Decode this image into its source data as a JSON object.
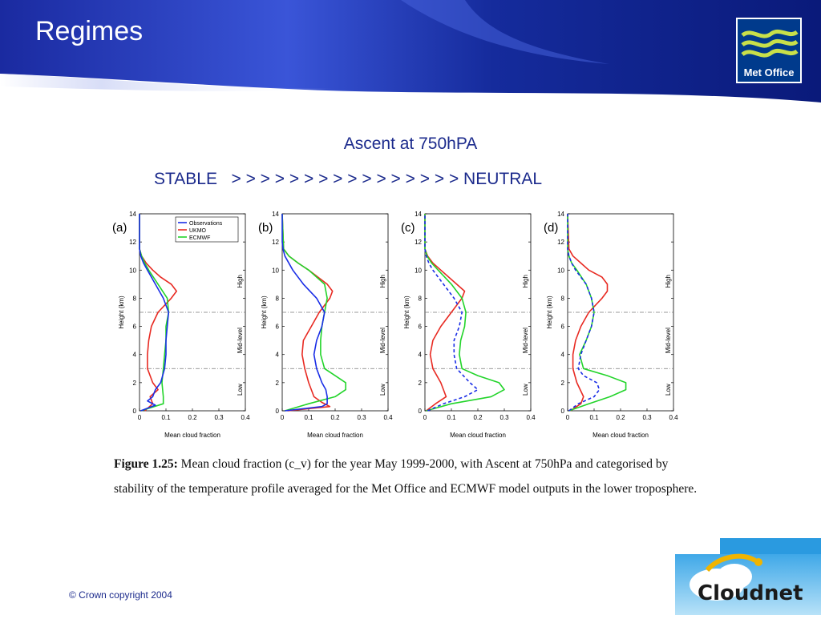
{
  "slide": {
    "title": "Regimes",
    "subtitle": "Ascent at 750hPA",
    "stability_label": "STABLE   > > > > > > > > > > > > > > > > NEUTRAL",
    "logo_text": "Met Office",
    "caption_label": "Figure 1.25:",
    "caption_text": " Mean cloud fraction (c_v) for the year May 1999-2000, with Ascent at 750hPa and categorised by stability of the temperature profile averaged for the Met Office  and ECMWF  model outputs in the lower troposphere.",
    "copyright": "© Crown copyright 2004",
    "footer_logo": "Cloudnet",
    "colors": {
      "header_blue": "#0f1f8c",
      "text_blue": "#1b2a8c",
      "observations": "#1a2ee6",
      "ukmo": "#e82a22",
      "ecmwf": "#22d42a"
    }
  },
  "chart_data": [
    {
      "type": "line",
      "panel_label": "(a)",
      "xlabel": "Mean cloud fraction",
      "ylabel": "Height (km)",
      "xlim": [
        0,
        0.4
      ],
      "ylim": [
        0,
        14
      ],
      "xticks": [
        "0",
        "0.1",
        "0.2",
        "0.3",
        "0.4"
      ],
      "yticks": [
        "0",
        "2",
        "4",
        "6",
        "8",
        "10",
        "12",
        "14"
      ],
      "region_labels": [
        "Low",
        "Mid-level",
        "High"
      ],
      "region_boundaries": [
        3,
        7
      ],
      "legend": [
        "Observations",
        "UKMO",
        "ECMWF"
      ],
      "series": [
        {
          "name": "Observations",
          "y": [
            0,
            0.4,
            0.7,
            1,
            1.5,
            2,
            3,
            4,
            5,
            6,
            7,
            8,
            9,
            10,
            10.5,
            11,
            11.5,
            12,
            14
          ],
          "x": [
            0.005,
            0.06,
            0.03,
            0.05,
            0.06,
            0.08,
            0.095,
            0.1,
            0.1,
            0.105,
            0.11,
            0.09,
            0.06,
            0.03,
            0.015,
            0.005,
            0,
            0,
            0
          ]
        },
        {
          "name": "UKMO",
          "y": [
            0,
            0.5,
            1,
            1.5,
            2,
            3,
            4,
            5,
            6,
            7,
            8,
            8.5,
            9,
            9.5,
            10,
            10.5,
            11,
            11.5,
            14
          ],
          "x": [
            0.02,
            0.05,
            0.04,
            0.07,
            0.05,
            0.03,
            0.03,
            0.035,
            0.045,
            0.07,
            0.12,
            0.14,
            0.12,
            0.08,
            0.05,
            0.025,
            0.008,
            0,
            0
          ]
        },
        {
          "name": "ECMWF",
          "y": [
            0,
            0.5,
            1,
            2,
            3,
            4,
            5,
            6,
            7,
            8,
            9,
            10,
            10.5,
            11,
            11.5,
            14
          ],
          "x": [
            0.005,
            0.09,
            0.09,
            0.085,
            0.09,
            0.095,
            0.1,
            0.1,
            0.11,
            0.105,
            0.07,
            0.035,
            0.02,
            0.008,
            0,
            0
          ]
        }
      ]
    },
    {
      "type": "line",
      "panel_label": "(b)",
      "xlabel": "Mean cloud fraction",
      "ylabel": "Height (km)",
      "xlim": [
        0,
        0.4
      ],
      "ylim": [
        0,
        14
      ],
      "xticks": [
        "0",
        "0.1",
        "0.2",
        "0.3",
        "0.4"
      ],
      "yticks": [
        "0",
        "2",
        "4",
        "6",
        "8",
        "10",
        "12",
        "14"
      ],
      "region_labels": [
        "Low",
        "Mid-level",
        "High"
      ],
      "region_boundaries": [
        3,
        7
      ],
      "series": [
        {
          "name": "Observations",
          "y": [
            0,
            0.3,
            0.5,
            1,
            1.5,
            2,
            3,
            4,
            5,
            6,
            7,
            8,
            9,
            10,
            11,
            11.5,
            12,
            12.5,
            14
          ],
          "x": [
            0.01,
            0.15,
            0.17,
            0.17,
            0.165,
            0.15,
            0.13,
            0.12,
            0.13,
            0.15,
            0.16,
            0.13,
            0.08,
            0.04,
            0.01,
            0.003,
            0,
            0,
            0
          ]
        },
        {
          "name": "UKMO",
          "y": [
            0,
            0.3,
            0.6,
            1,
            2,
            3,
            4,
            5,
            6,
            7,
            8,
            8.5,
            9,
            10,
            10.5,
            11,
            11.5,
            14
          ],
          "x": [
            0.02,
            0.18,
            0.15,
            0.12,
            0.1,
            0.085,
            0.075,
            0.08,
            0.11,
            0.14,
            0.18,
            0.19,
            0.17,
            0.1,
            0.06,
            0.025,
            0.005,
            0
          ]
        },
        {
          "name": "ECMWF",
          "y": [
            0,
            0.5,
            1,
            1.5,
            2,
            2.5,
            3,
            4,
            5,
            6,
            7,
            8,
            9,
            10,
            10.5,
            11,
            11.5,
            14
          ],
          "x": [
            0.01,
            0.1,
            0.2,
            0.24,
            0.24,
            0.2,
            0.16,
            0.145,
            0.145,
            0.15,
            0.16,
            0.17,
            0.16,
            0.1,
            0.06,
            0.025,
            0.005,
            0
          ]
        }
      ]
    },
    {
      "type": "line",
      "panel_label": "(c)",
      "xlabel": "Mean cloud fraction",
      "ylabel": "Height (km)",
      "xlim": [
        0,
        0.4
      ],
      "ylim": [
        0,
        14
      ],
      "xticks": [
        "0",
        "0.1",
        "0.2",
        "0.3",
        "0.4"
      ],
      "yticks": [
        "0",
        "2",
        "4",
        "6",
        "8",
        "10",
        "12",
        "14"
      ],
      "region_labels": [
        "Low",
        "Mid-level",
        "High"
      ],
      "region_boundaries": [
        3,
        7
      ],
      "series": [
        {
          "name": "Observations",
          "y": [
            0,
            0.5,
            1,
            1.5,
            2,
            3,
            4,
            5,
            6,
            7,
            8,
            9,
            10,
            10.5,
            11,
            11.5,
            12,
            14
          ],
          "x": [
            0.01,
            0.07,
            0.15,
            0.2,
            0.17,
            0.12,
            0.11,
            0.11,
            0.13,
            0.14,
            0.11,
            0.07,
            0.03,
            0.015,
            0.005,
            0,
            0,
            0
          ]
        },
        {
          "name": "UKMO",
          "y": [
            0,
            0.5,
            1,
            2,
            3,
            4,
            5,
            6,
            7,
            8,
            8.5,
            9,
            10,
            10.5,
            11,
            11.5,
            14
          ],
          "x": [
            0.005,
            0.04,
            0.08,
            0.06,
            0.03,
            0.02,
            0.03,
            0.06,
            0.1,
            0.14,
            0.15,
            0.12,
            0.06,
            0.03,
            0.01,
            0,
            0
          ]
        },
        {
          "name": "ECMWF",
          "y": [
            0,
            0.5,
            1,
            1.5,
            2,
            2.5,
            3,
            4,
            5,
            6,
            7,
            8,
            9,
            10,
            10.5,
            11,
            11.5,
            14
          ],
          "x": [
            0.005,
            0.1,
            0.25,
            0.3,
            0.28,
            0.2,
            0.14,
            0.13,
            0.135,
            0.15,
            0.155,
            0.14,
            0.1,
            0.05,
            0.025,
            0.008,
            0,
            0
          ]
        }
      ]
    },
    {
      "type": "line",
      "panel_label": "(d)",
      "xlabel": "Mean cloud fraction",
      "ylabel": "Height (km)",
      "xlim": [
        0,
        0.4
      ],
      "ylim": [
        0,
        14
      ],
      "xticks": [
        "0",
        "0.1",
        "0.2",
        "0.3",
        "0.4"
      ],
      "yticks": [
        "0",
        "2",
        "4",
        "6",
        "8",
        "10",
        "12",
        "14"
      ],
      "region_labels": [
        "Low",
        "Mid-level",
        "High"
      ],
      "region_boundaries": [
        3,
        7
      ],
      "series": [
        {
          "name": "Observations",
          "y": [
            0,
            0.5,
            1,
            1.5,
            2,
            2.5,
            3,
            4,
            5,
            6,
            7,
            8,
            9,
            10,
            10.5,
            11,
            11.5,
            14
          ],
          "x": [
            0.005,
            0.04,
            0.1,
            0.12,
            0.11,
            0.06,
            0.04,
            0.05,
            0.07,
            0.09,
            0.1,
            0.09,
            0.07,
            0.03,
            0.015,
            0.005,
            0,
            0
          ]
        },
        {
          "name": "UKMO",
          "y": [
            0,
            0.5,
            1,
            2,
            3,
            4,
            5,
            6,
            7,
            8,
            8.5,
            9,
            9.5,
            10,
            10.5,
            11,
            11.5,
            14
          ],
          "x": [
            0.01,
            0.05,
            0.06,
            0.035,
            0.02,
            0.02,
            0.03,
            0.05,
            0.08,
            0.13,
            0.15,
            0.15,
            0.13,
            0.08,
            0.05,
            0.02,
            0.005,
            0
          ]
        },
        {
          "name": "ECMWF",
          "y": [
            0,
            0.5,
            1,
            1.5,
            2,
            2.5,
            3,
            4,
            5,
            6,
            7,
            8,
            9,
            10,
            10.5,
            11,
            11.5,
            14
          ],
          "x": [
            0.005,
            0.08,
            0.16,
            0.22,
            0.22,
            0.15,
            0.06,
            0.045,
            0.07,
            0.09,
            0.1,
            0.09,
            0.07,
            0.035,
            0.015,
            0.005,
            0,
            0
          ]
        }
      ]
    }
  ]
}
